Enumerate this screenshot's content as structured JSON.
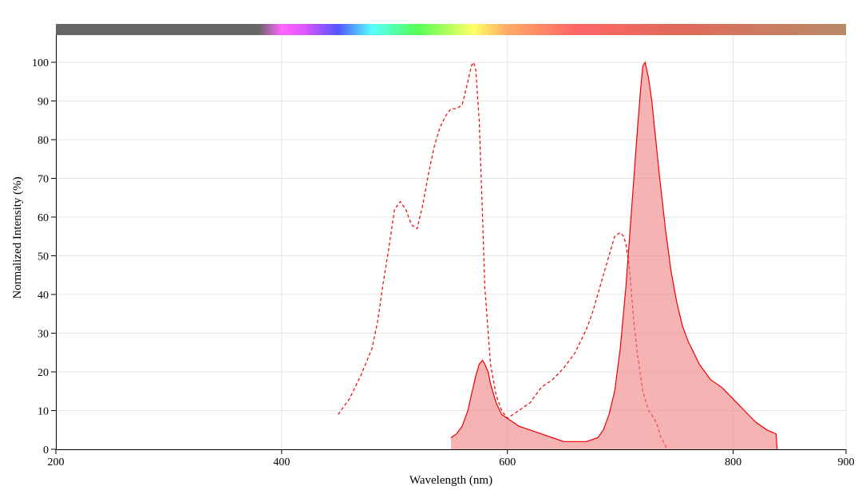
{
  "chart_data": {
    "type": "area",
    "title": "",
    "xlabel": "Wavelength (nm)",
    "ylabel": "Normalized Intensity (%)",
    "xlim": [
      200,
      900
    ],
    "ylim": [
      0,
      100
    ],
    "xticks": [
      200,
      400,
      600,
      800,
      900
    ],
    "yticks": [
      0,
      10,
      20,
      30,
      40,
      50,
      60,
      70,
      80,
      90,
      100
    ],
    "grid": true,
    "legend": "none",
    "colors": {
      "line": "#ee0000",
      "fill": "#f08080",
      "axis": "#000000",
      "grid": "#e5e5e5"
    },
    "spectrum_bar": {
      "range_nm": [
        200,
        900
      ],
      "stops": [
        {
          "nm": 200,
          "color": "#666666"
        },
        {
          "nm": 380,
          "color": "#666666"
        },
        {
          "nm": 400,
          "color": "#ff66ff"
        },
        {
          "nm": 420,
          "color": "#dd55ff"
        },
        {
          "nm": 450,
          "color": "#5555ff"
        },
        {
          "nm": 480,
          "color": "#55ffff"
        },
        {
          "nm": 520,
          "color": "#55ff55"
        },
        {
          "nm": 570,
          "color": "#ffff66"
        },
        {
          "nm": 600,
          "color": "#ffaa66"
        },
        {
          "nm": 660,
          "color": "#ff6666"
        },
        {
          "nm": 750,
          "color": "#e06a5a"
        },
        {
          "nm": 900,
          "color": "#b88a66"
        }
      ]
    },
    "series": [
      {
        "style": "dashed",
        "filled": false,
        "x": [
          450,
          455,
          460,
          470,
          480,
          485,
          490,
          495,
          500,
          505,
          510,
          515,
          520,
          525,
          530,
          535,
          540,
          545,
          550,
          555,
          560,
          565,
          568,
          570,
          572,
          575,
          578,
          580,
          583,
          585,
          590,
          595,
          600,
          605,
          610,
          620,
          630,
          640,
          650,
          660,
          670,
          675,
          680,
          685,
          690,
          695,
          700,
          703,
          705,
          708,
          710,
          712,
          715,
          718,
          720,
          725,
          730,
          733,
          736,
          740,
          741
        ],
        "y": [
          9,
          11,
          13,
          19,
          26,
          33,
          43,
          52,
          62,
          64,
          62,
          58,
          57,
          63,
          71,
          78,
          83,
          86,
          88,
          88,
          89,
          95,
          99,
          100,
          98,
          85,
          60,
          42,
          30,
          22,
          14,
          10,
          8,
          9,
          10,
          12,
          16,
          18,
          21,
          25,
          31,
          35,
          40,
          45,
          50,
          55,
          56,
          55,
          53,
          47,
          40,
          33,
          25,
          19,
          15,
          10,
          8,
          6,
          3,
          1,
          0
        ]
      },
      {
        "style": "solid",
        "filled": true,
        "x": [
          550,
          555,
          560,
          565,
          568,
          572,
          575,
          578,
          580,
          583,
          585,
          588,
          590,
          595,
          600,
          605,
          610,
          620,
          630,
          640,
          650,
          660,
          670,
          680,
          685,
          690,
          695,
          700,
          705,
          710,
          715,
          718,
          720,
          722,
          725,
          728,
          730,
          735,
          740,
          745,
          750,
          755,
          760,
          765,
          770,
          775,
          780,
          790,
          800,
          810,
          820,
          830,
          838,
          839
        ],
        "y": [
          3,
          4,
          6,
          10,
          14,
          19,
          22,
          23,
          22,
          20,
          17,
          14,
          12,
          9,
          8,
          7,
          6,
          5,
          4,
          3,
          2,
          2,
          2,
          3,
          5,
          9,
          15,
          26,
          42,
          62,
          82,
          93,
          99,
          100,
          96,
          90,
          84,
          70,
          57,
          46,
          38,
          32,
          28,
          25,
          22,
          20,
          18,
          16,
          13,
          10,
          7,
          5,
          4,
          0
        ]
      }
    ]
  }
}
